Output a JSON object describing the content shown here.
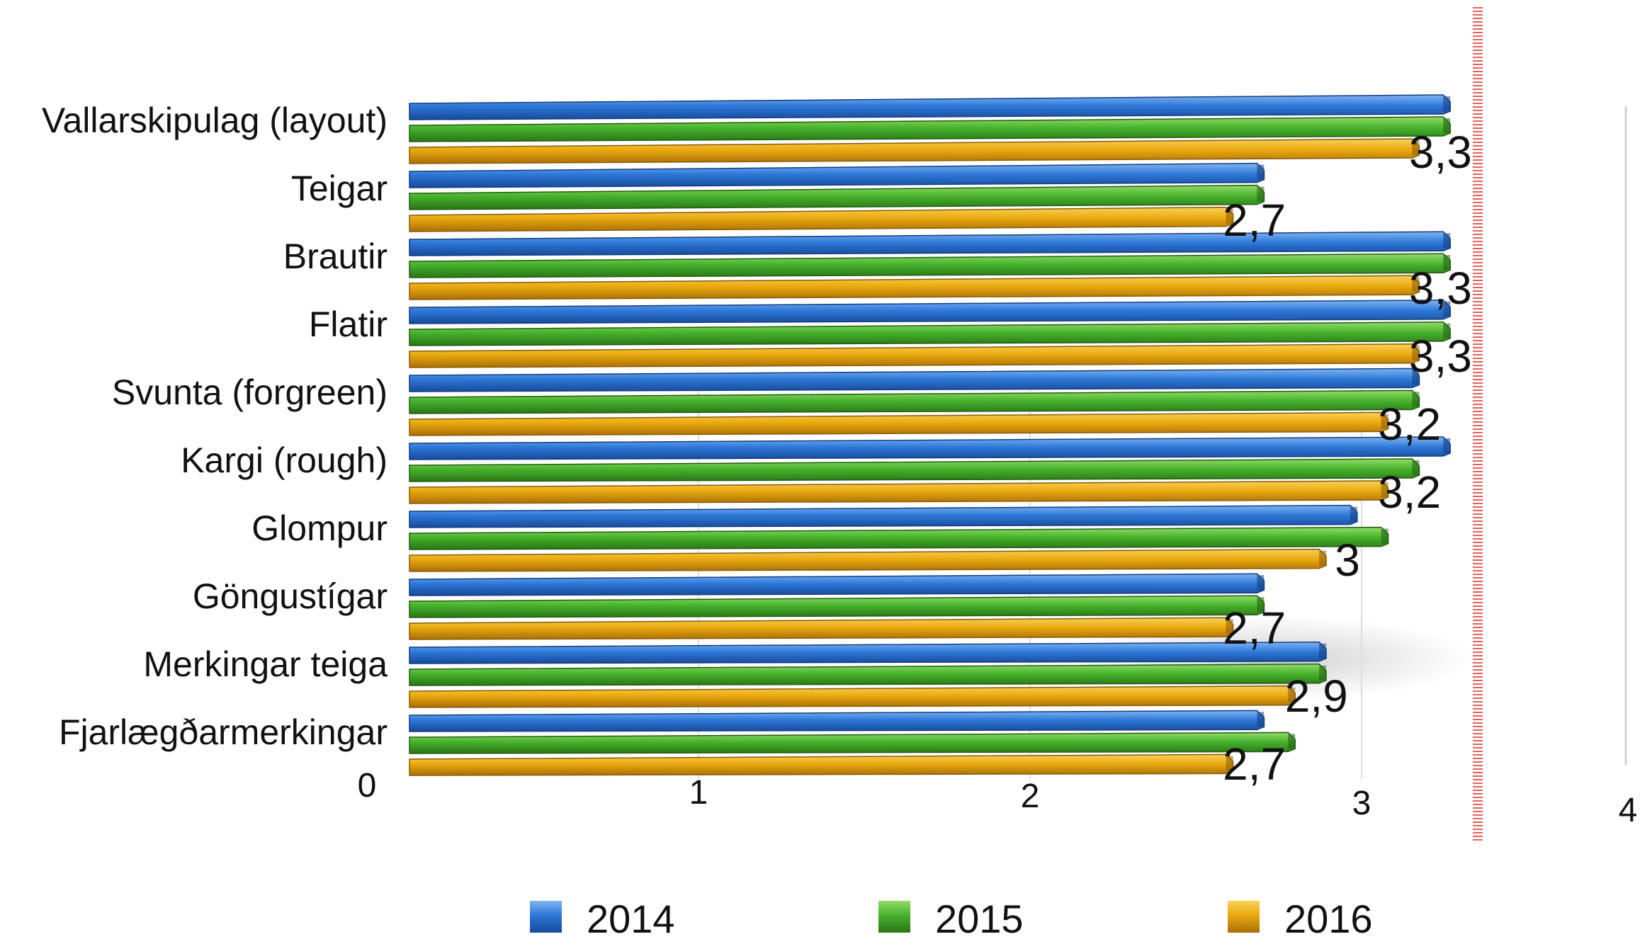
{
  "chart_data": {
    "type": "bar",
    "orientation": "horizontal",
    "style": "3d",
    "categories": [
      "Vallarskipulag (layout)",
      "Teigar",
      "Brautir",
      "Flatir",
      "Svunta (forgreen)",
      "Kargi (rough)",
      "Glompur",
      "Göngustígar",
      "Merkingar teiga",
      "Fjarlægðarmerkingar"
    ],
    "series": [
      {
        "name": "2014",
        "color": "#2b74d6",
        "values": [
          3.4,
          2.8,
          3.4,
          3.4,
          3.3,
          3.4,
          3.1,
          2.8,
          3.0,
          2.8
        ]
      },
      {
        "name": "2015",
        "color": "#46b02a",
        "values": [
          3.4,
          2.8,
          3.4,
          3.4,
          3.3,
          3.3,
          3.2,
          2.8,
          3.0,
          2.9
        ]
      },
      {
        "name": "2016",
        "color": "#e9a90d",
        "values": [
          3.3,
          2.7,
          3.3,
          3.3,
          3.2,
          3.2,
          3.0,
          2.7,
          2.9,
          2.7
        ]
      }
    ],
    "data_labels": [
      "3,3",
      "2,7",
      "3,3",
      "3,3",
      "3,2",
      "3,2",
      "3",
      "2,7",
      "2,9",
      "2,7"
    ],
    "x_ticks": [
      "0",
      "1",
      "2",
      "3",
      "4"
    ],
    "xlim": [
      0,
      4
    ],
    "reference_line": {
      "value": 3.5,
      "color": "#e8605a"
    },
    "legend_position": "bottom",
    "grid": true,
    "title": "",
    "xlabel": "",
    "ylabel": ""
  }
}
